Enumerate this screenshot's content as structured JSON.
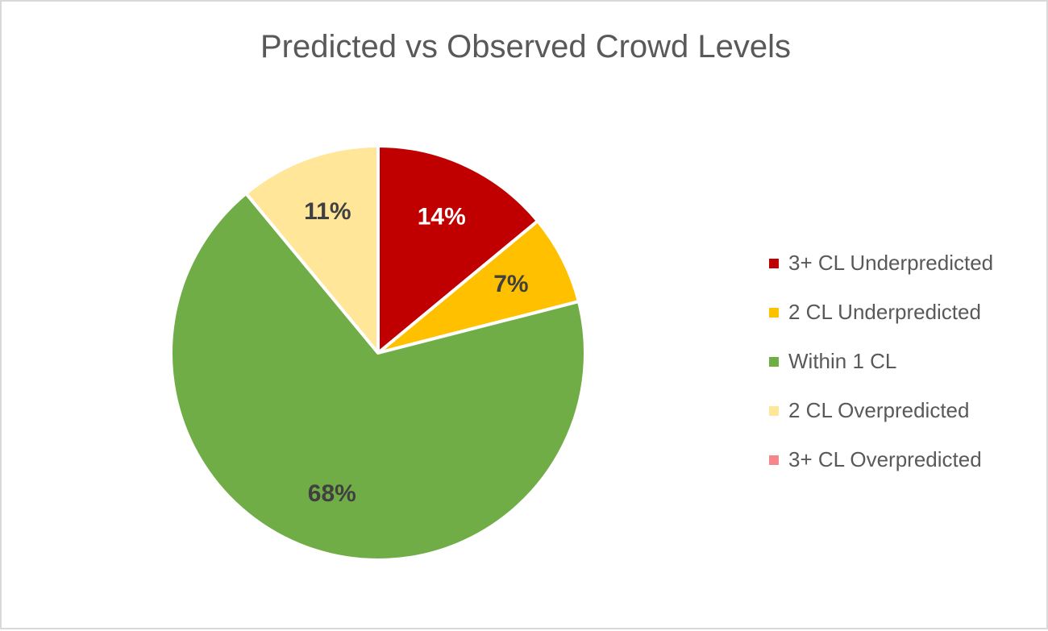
{
  "chart_data": {
    "type": "pie",
    "title": "Predicted vs Observed Crowd Levels",
    "categories": [
      "3+ CL Underpredicted",
      "2 CL Underpredicted",
      "Within 1 CL",
      "2 CL Overpredicted",
      "3+ CL Overpredicted"
    ],
    "values": [
      14,
      7,
      68,
      11,
      0
    ],
    "data_labels": [
      "14%",
      "7%",
      "68%",
      "11%",
      ""
    ],
    "colors": [
      "#c00000",
      "#ffc000",
      "#70ad47",
      "#ffe699",
      "#f4868c"
    ],
    "label_colors": [
      "#ffffff",
      "#404040",
      "#404040",
      "#404040",
      "#404040"
    ],
    "start_angle": "12 o'clock",
    "direction": "clockwise",
    "legend_position": "right"
  }
}
